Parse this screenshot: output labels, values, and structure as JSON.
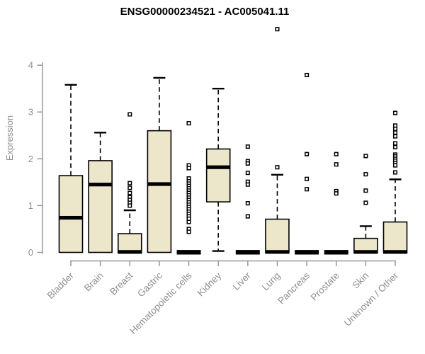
{
  "style": {
    "box_fill": "#ECE6CA",
    "box_stroke": "#000000",
    "median_color": "#000000",
    "outlier_color": "#000000",
    "axis_color": "#979797",
    "label_color": "#8f8f8f",
    "title_color": "#000000",
    "background": "#ffffff"
  },
  "chart_data": {
    "type": "boxplot",
    "title": "ENSG00000234521 - AC005041.11",
    "ylabel": "Expression",
    "xlabel": "",
    "ylim": [
      0,
      4
    ],
    "yticks": [
      0,
      1,
      2,
      3,
      4
    ],
    "grid": false,
    "legend": false,
    "categories": [
      "Bladder",
      "Brain",
      "Breast",
      "Gastric",
      "Hematopoietic cells",
      "Kidney",
      "Liver",
      "Lung",
      "Pancreas",
      "Prostate",
      "Skin",
      "Unknown / Other"
    ],
    "series": [
      {
        "name": "Bladder",
        "q1": 0,
        "median": 0.74,
        "q3": 1.64,
        "whisker_low": 0,
        "whisker_high": 3.58,
        "outliers": []
      },
      {
        "name": "Brain",
        "q1": 0,
        "median": 1.45,
        "q3": 1.96,
        "whisker_low": 0,
        "whisker_high": 2.56,
        "outliers": []
      },
      {
        "name": "Breast",
        "q1": 0,
        "median": 0.01,
        "q3": 0.4,
        "whisker_low": 0,
        "whisker_high": 0.9,
        "outliers": [
          2.95,
          1.48,
          1.38,
          1.27,
          1.18,
          1.12,
          1.06,
          1.0
        ]
      },
      {
        "name": "Gastric",
        "q1": 0,
        "median": 1.46,
        "q3": 2.6,
        "whisker_low": 0,
        "whisker_high": 3.73,
        "outliers": []
      },
      {
        "name": "Hematopoietic cells",
        "q1": 0,
        "median": 0.01,
        "q3": 0.02,
        "whisker_low": 0,
        "whisker_high": 0.02,
        "outliers": [
          2.76,
          1.86,
          1.8,
          1.58,
          1.52,
          1.47,
          1.42,
          1.37,
          1.32,
          1.27,
          1.22,
          1.17,
          1.12,
          1.07,
          1.02,
          0.97,
          0.92,
          0.87,
          0.82,
          0.77,
          0.72,
          0.65,
          0.5,
          0.44
        ]
      },
      {
        "name": "Kidney",
        "q1": 1.08,
        "median": 1.82,
        "q3": 2.21,
        "whisker_low": 0.03,
        "whisker_high": 3.5,
        "outliers": []
      },
      {
        "name": "Liver",
        "q1": 0,
        "median": 0.01,
        "q3": 0.02,
        "whisker_low": 0,
        "whisker_high": 0.02,
        "outliers": [
          2.26,
          1.95,
          1.9,
          1.7,
          1.51,
          1.45,
          1.05,
          0.77
        ]
      },
      {
        "name": "Lung",
        "q1": 0,
        "median": 0.01,
        "q3": 0.71,
        "whisker_low": 0,
        "whisker_high": 1.66,
        "outliers": [
          4.77,
          1.82
        ]
      },
      {
        "name": "Pancreas",
        "q1": 0,
        "median": 0.01,
        "q3": 0.02,
        "whisker_low": 0,
        "whisker_high": 0.02,
        "outliers": [
          3.79,
          2.1,
          1.57,
          1.35
        ]
      },
      {
        "name": "Prostate",
        "q1": 0,
        "median": 0.01,
        "q3": 0.02,
        "whisker_low": 0,
        "whisker_high": 0.02,
        "outliers": [
          2.1,
          1.88,
          1.31,
          1.26
        ]
      },
      {
        "name": "Skin",
        "q1": 0,
        "median": 0.01,
        "q3": 0.3,
        "whisker_low": 0,
        "whisker_high": 0.56,
        "outliers": [
          2.06,
          1.67,
          1.32,
          1.06
        ]
      },
      {
        "name": "Unknown / Other",
        "q1": 0,
        "median": 0.01,
        "q3": 0.65,
        "whisker_low": 0,
        "whisker_high": 1.56,
        "outliers": [
          2.98,
          2.71,
          2.64,
          2.56,
          2.48,
          2.33,
          2.25,
          2.09,
          2.05,
          2.0,
          1.96,
          1.91,
          1.86,
          1.71
        ]
      }
    ]
  }
}
